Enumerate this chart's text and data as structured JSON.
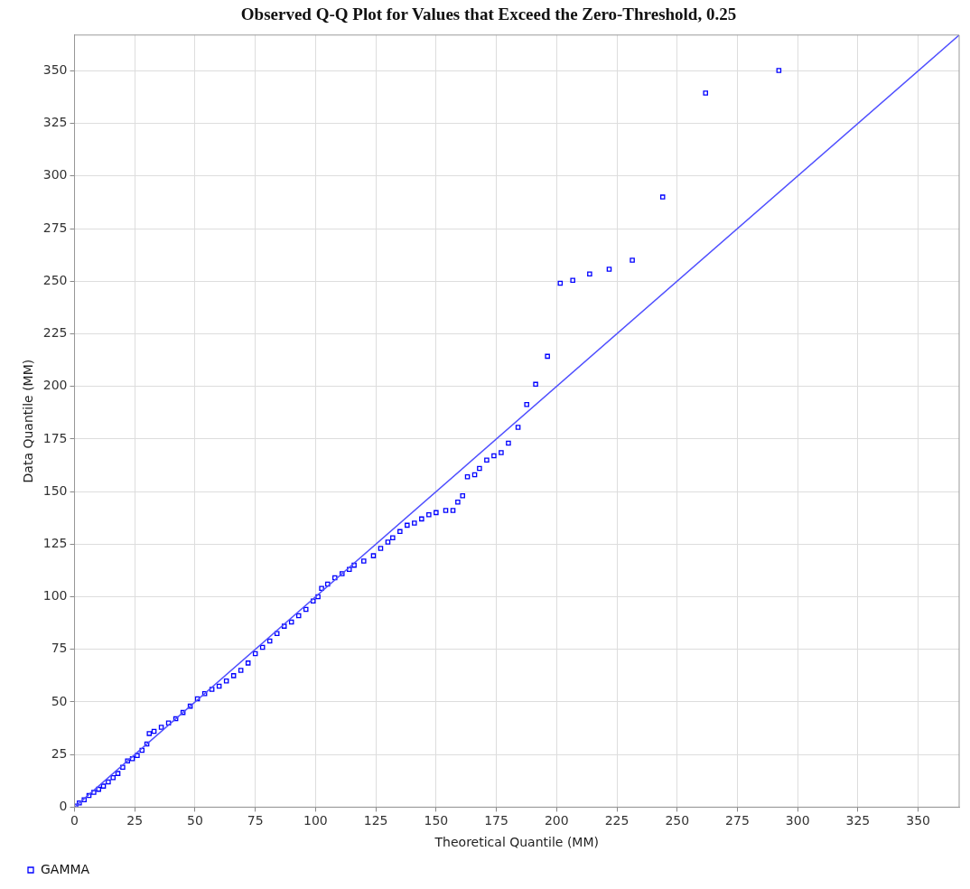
{
  "chart_data": {
    "type": "scatter",
    "title": "Observed Q-Q Plot for Values that Exceed the Zero-Threshold, 0.25",
    "xlabel": "Theoretical Quantile (MM)",
    "ylabel": "Data Quantile (MM)",
    "xlim": [
      0,
      367
    ],
    "ylim": [
      0,
      367
    ],
    "xticks": [
      0,
      25,
      50,
      75,
      100,
      125,
      150,
      175,
      200,
      225,
      250,
      275,
      300,
      325,
      350
    ],
    "yticks": [
      0,
      25,
      50,
      75,
      100,
      125,
      150,
      175,
      200,
      225,
      250,
      275,
      300,
      325,
      350
    ],
    "grid": true,
    "legend": "bottom left",
    "marker": "square",
    "series": [
      {
        "name": "GAMMA",
        "color": "#0000ff",
        "x": [
          0.5,
          2,
          4,
          6,
          8,
          10,
          12,
          14,
          16,
          18,
          20,
          22,
          24,
          26,
          28,
          30,
          31,
          33,
          36,
          39,
          42,
          45,
          48,
          51,
          54,
          57,
          60,
          63,
          66,
          69,
          72,
          75,
          78,
          81,
          84,
          87,
          90,
          93,
          96,
          99,
          101,
          102.5,
          105,
          108,
          111,
          114,
          116,
          120,
          124,
          127,
          130,
          132,
          135,
          138,
          141,
          144,
          147,
          150,
          154,
          157,
          159,
          161,
          163,
          166,
          168,
          171,
          174,
          177,
          180,
          184,
          187.6,
          191.3,
          196.2,
          201.5,
          206.7,
          213.7,
          221.8,
          231.4,
          244,
          261.8,
          292.2
        ],
        "values": [
          0.5,
          2,
          3.5,
          5.5,
          7,
          8.5,
          10,
          12,
          14,
          16,
          19,
          22,
          23,
          24.5,
          27,
          30,
          35,
          36,
          38,
          40,
          42,
          45,
          48,
          51.5,
          54,
          56,
          57.5,
          60,
          62.5,
          65,
          68.5,
          73,
          76,
          79,
          82.5,
          86,
          88,
          91,
          94,
          98,
          100,
          104,
          106,
          109,
          111,
          113,
          115,
          117,
          119.5,
          123,
          126,
          128,
          131,
          134,
          135,
          137,
          139,
          140,
          141,
          141,
          145,
          148,
          157,
          158,
          161,
          165,
          167,
          168.5,
          173,
          180.5,
          191.4,
          201,
          214.3,
          249,
          250.4,
          253.4,
          255.7,
          260,
          290,
          339.4,
          350.2
        ]
      },
      {
        "type": "line",
        "color": "#5050ff",
        "marker": "none",
        "x": [
          0,
          367
        ],
        "values": [
          0,
          367
        ]
      }
    ]
  }
}
